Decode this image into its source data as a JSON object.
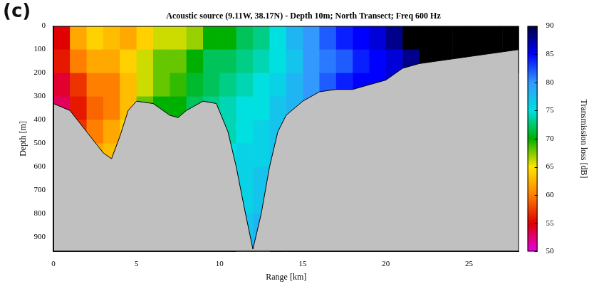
{
  "panel_label": "(c)",
  "chart_data": {
    "type": "heatmap",
    "title": "Acoustic source (9.11W, 38.17N) - Depth 10m; North Transect; Freq 600 Hz",
    "x_label": "Range [km]",
    "y_label": "Depth [m]",
    "xlim": [
      0,
      28
    ],
    "xticks": [
      0,
      5,
      10,
      15,
      20,
      25
    ],
    "ylim": [
      960,
      0
    ],
    "yticks": [
      0,
      100,
      200,
      300,
      400,
      500,
      600,
      700,
      800,
      900
    ],
    "cells": {
      "x_edges": [
        0,
        1,
        2,
        3,
        4,
        5,
        6,
        7,
        8,
        9,
        10,
        11,
        12,
        13,
        14,
        15,
        16,
        17,
        18,
        19,
        20,
        21,
        22,
        23,
        24,
        25,
        26,
        27,
        28
      ],
      "y_edges": [
        0,
        100,
        200,
        300,
        400,
        500,
        600,
        700,
        800,
        900,
        1000
      ],
      "values": [
        [
          55,
          56,
          54,
          53,
          null,
          null,
          null,
          null,
          null,
          null
        ],
        [
          62,
          60,
          57,
          56,
          57,
          null,
          null,
          null,
          null,
          null
        ],
        [
          64,
          62,
          60,
          59,
          60,
          62,
          null,
          null,
          null,
          null
        ],
        [
          63,
          62,
          60,
          60,
          62,
          63,
          null,
          null,
          null,
          null
        ],
        [
          62,
          64,
          63,
          63,
          64,
          null,
          null,
          null,
          null,
          null
        ],
        [
          64,
          66,
          66,
          68,
          null,
          null,
          null,
          null,
          null,
          null
        ],
        [
          66,
          68,
          68,
          70,
          null,
          null,
          null,
          null,
          null,
          null
        ],
        [
          66,
          68,
          69,
          70,
          null,
          null,
          null,
          null,
          null,
          null
        ],
        [
          67,
          70,
          71,
          72,
          null,
          null,
          null,
          null,
          null,
          null
        ],
        [
          70,
          72,
          72,
          73,
          null,
          null,
          null,
          null,
          null,
          null
        ],
        [
          70,
          72,
          73,
          74,
          74,
          75,
          null,
          null,
          null,
          null
        ],
        [
          72,
          73,
          74,
          75,
          75,
          76,
          76,
          76,
          77,
          78
        ],
        [
          73,
          74,
          75,
          75,
          76,
          76,
          77,
          77,
          78,
          78
        ],
        [
          75,
          75,
          76,
          77,
          77,
          77,
          null,
          null,
          null,
          null
        ],
        [
          78,
          77,
          78,
          78,
          null,
          null,
          null,
          null,
          null,
          null
        ],
        [
          80,
          80,
          80,
          80,
          null,
          null,
          null,
          null,
          null,
          null
        ],
        [
          82,
          81,
          82,
          null,
          null,
          null,
          null,
          null,
          null,
          null
        ],
        [
          84,
          82,
          84,
          null,
          null,
          null,
          null,
          null,
          null,
          null
        ],
        [
          85,
          84,
          85,
          null,
          null,
          null,
          null,
          null,
          null,
          null
        ],
        [
          86,
          85,
          85,
          null,
          null,
          null,
          null,
          null,
          null,
          null
        ],
        [
          88,
          86,
          86,
          null,
          null,
          null,
          null,
          null,
          null,
          null
        ],
        [
          95,
          88,
          null,
          null,
          null,
          null,
          null,
          null,
          null,
          null
        ],
        [
          95,
          92,
          null,
          null,
          null,
          null,
          null,
          null,
          null,
          null
        ],
        [
          95,
          93,
          null,
          null,
          null,
          null,
          null,
          null,
          null,
          null
        ],
        [
          95,
          94,
          null,
          null,
          null,
          null,
          null,
          null,
          null,
          null
        ],
        [
          95,
          95,
          null,
          null,
          null,
          null,
          null,
          null,
          null,
          null
        ],
        [
          95,
          95,
          null,
          null,
          null,
          null,
          null,
          null,
          null,
          null
        ],
        [
          95,
          95,
          null,
          null,
          null,
          null,
          null,
          null,
          null,
          null
        ]
      ]
    },
    "bathymetry": {
      "color": "#c0c0c0",
      "x": [
        0,
        1,
        2,
        3,
        3.5,
        4,
        4.5,
        5,
        6,
        7,
        7.5,
        8,
        9,
        9.8,
        10.5,
        11,
        11.5,
        12,
        12.5,
        13,
        13.5,
        14,
        15,
        16,
        17,
        18,
        19,
        20,
        21,
        22,
        23,
        24,
        25,
        26,
        27,
        28
      ],
      "y": [
        330,
        360,
        450,
        540,
        565,
        470,
        360,
        320,
        330,
        380,
        390,
        360,
        320,
        330,
        450,
        600,
        780,
        950,
        800,
        600,
        450,
        380,
        320,
        280,
        270,
        270,
        250,
        230,
        180,
        160,
        150,
        140,
        130,
        120,
        110,
        100
      ]
    },
    "colorbar": {
      "label": "Transmission loss [dB]",
      "lim": [
        50,
        90
      ],
      "ticks": [
        50,
        55,
        60,
        65,
        70,
        75,
        80,
        85,
        90
      ],
      "colors": [
        "#e600e6",
        "#e00000",
        "#ff7f00",
        "#ffe600",
        "#00b000",
        "#00e0e0",
        "#3399ff",
        "#0000ff",
        "#000040"
      ]
    }
  }
}
